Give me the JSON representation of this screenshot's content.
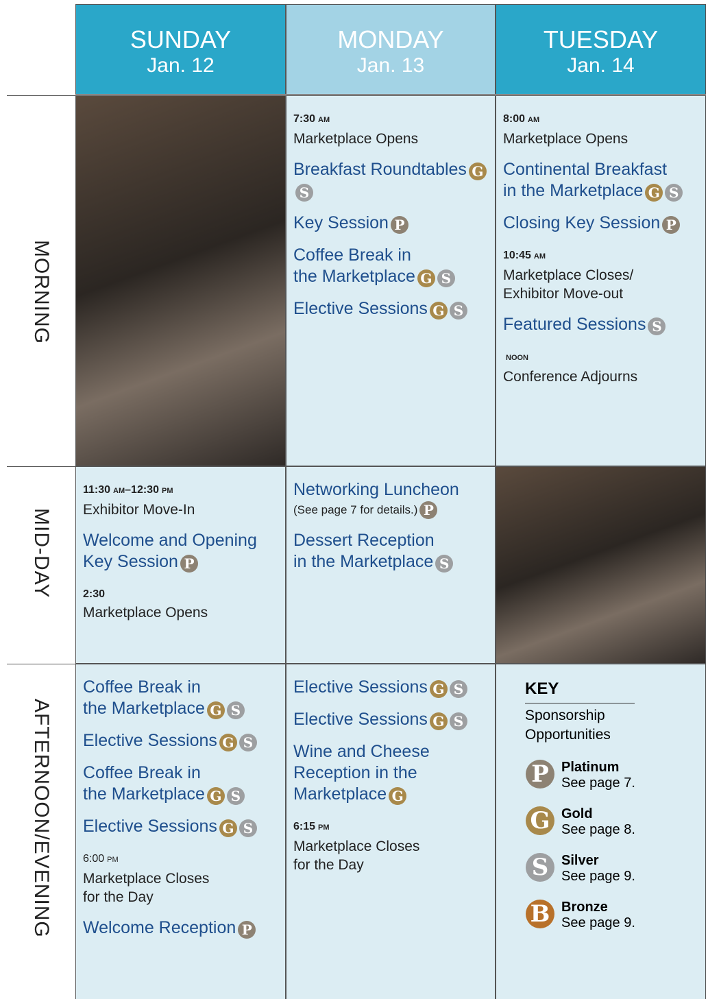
{
  "days": [
    {
      "name": "SUNDAY",
      "date": "Jan. 12",
      "color": "#2aa7c9"
    },
    {
      "name": "MONDAY",
      "date": "Jan. 13",
      "color": "#a3d3e5"
    },
    {
      "name": "TUESDAY",
      "date": "Jan. 14",
      "color": "#2aa7c9"
    }
  ],
  "periods": [
    "MORNING",
    "MID-DAY",
    "AFTERNOON/EVENING"
  ],
  "badge_colors": {
    "G": "#a8894b",
    "S": "#9d9fa1",
    "P": "#8d8273",
    "B": "#b8712a"
  },
  "schedule": [
    [
      {
        "photo": true
      },
      {
        "items": [
          {
            "time": [
              {
                "text": "7:30",
                "bold": true
              },
              {
                "text": "AM",
                "bold": true,
                "small": true
              }
            ],
            "lines": [
              "Marketplace Opens"
            ]
          },
          {
            "session": [
              "Breakfast Roundtables"
            ],
            "badges": [
              "G",
              "S"
            ]
          },
          {
            "session": [
              "Key Session"
            ],
            "badges": [
              "P"
            ]
          },
          {
            "session": [
              "Coffee Break in",
              "the Marketplace"
            ],
            "badges": [
              "G",
              "S"
            ]
          },
          {
            "session": [
              "Elective Sessions"
            ],
            "badges": [
              "G",
              "S"
            ]
          }
        ]
      },
      {
        "items": [
          {
            "time": [
              {
                "text": "8:00",
                "bold": true
              },
              {
                "text": "AM",
                "bold": true,
                "small": true
              }
            ],
            "lines": [
              "Marketplace Opens"
            ]
          },
          {
            "session": [
              "Continental Breakfast",
              "in the Marketplace"
            ],
            "badges": [
              "G",
              "S"
            ]
          },
          {
            "session": [
              "Closing Key Session"
            ],
            "badges": [
              "P"
            ]
          },
          {
            "time": [
              {
                "text": "10:45",
                "bold": true
              },
              {
                "text": "AM",
                "bold": true,
                "small": true
              }
            ],
            "lines": [
              "Marketplace Closes/",
              "Exhibitor Move-out"
            ]
          },
          {
            "session": [
              "Featured Sessions"
            ],
            "badges": [
              "S"
            ]
          },
          {
            "time": [
              {
                "text": "NOON",
                "bold": true,
                "small": true
              }
            ],
            "lines": [
              "Conference Adjourns"
            ]
          }
        ]
      }
    ],
    [
      {
        "items": [
          {
            "time": [
              {
                "text": "11:30",
                "bold": true
              },
              {
                "text": "AM",
                "bold": true,
                "small": true
              },
              {
                "text": "–12:30",
                "bold": true
              },
              {
                "text": "PM",
                "bold": true,
                "small": true
              }
            ],
            "lines": [
              "Exhibitor Move-In"
            ]
          },
          {
            "session": [
              "Welcome and Opening",
              "Key Session"
            ],
            "badges": [
              "P"
            ]
          },
          {
            "time": [
              {
                "text": "2:30",
                "bold": true
              }
            ],
            "lines": [
              "Marketplace Opens"
            ]
          }
        ]
      },
      {
        "items": [
          {
            "session": [
              "Networking Luncheon"
            ],
            "note": "(See page 7 for details.)",
            "badges": [
              "P"
            ]
          },
          {
            "session": [
              "Dessert Reception",
              "in the Marketplace"
            ],
            "badges": [
              "S"
            ]
          }
        ]
      },
      {
        "photo": true
      }
    ],
    [
      {
        "items": [
          {
            "session": [
              "Coffee Break in",
              "the Marketplace"
            ],
            "badges": [
              "G",
              "S"
            ]
          },
          {
            "session": [
              "Elective Sessions"
            ],
            "badges": [
              "G",
              "S"
            ]
          },
          {
            "session": [
              "Coffee Break in",
              "the Marketplace"
            ],
            "badges": [
              "G",
              "S"
            ]
          },
          {
            "session": [
              "Elective Sessions"
            ],
            "badges": [
              "G",
              "S"
            ]
          },
          {
            "time": [
              {
                "text": "6:00",
                "bold": false
              },
              {
                "text": "PM",
                "bold": false,
                "small": true
              }
            ],
            "lines": [
              "Marketplace Closes",
              "for the Day"
            ]
          },
          {
            "session": [
              "Welcome Reception"
            ],
            "badges": [
              "P"
            ]
          }
        ]
      },
      {
        "items": [
          {
            "session": [
              "Elective Sessions"
            ],
            "badges": [
              "G",
              "S"
            ]
          },
          {
            "session": [
              "Elective Sessions"
            ],
            "badges": [
              "G",
              "S"
            ]
          },
          {
            "session": [
              "Wine and Cheese",
              "Reception in the",
              "Marketplace"
            ],
            "badges": [
              "G"
            ]
          },
          {
            "time": [
              {
                "text": "6:15",
                "bold": true
              },
              {
                "text": "PM",
                "bold": true,
                "small": true
              }
            ],
            "lines": [
              "Marketplace Closes",
              "for the Day"
            ]
          }
        ]
      },
      {
        "key": true
      }
    ]
  ],
  "key": {
    "title": "KEY",
    "subtitle": [
      "Sponsorship",
      "Opportunities"
    ],
    "entries": [
      {
        "letter": "P",
        "name": "Platinum",
        "note": "See page 7."
      },
      {
        "letter": "G",
        "name": "Gold",
        "note": "See page 8."
      },
      {
        "letter": "S",
        "name": "Silver",
        "note": "See page 9."
      },
      {
        "letter": "B",
        "name": "Bronze",
        "note": "See page 9."
      }
    ]
  }
}
